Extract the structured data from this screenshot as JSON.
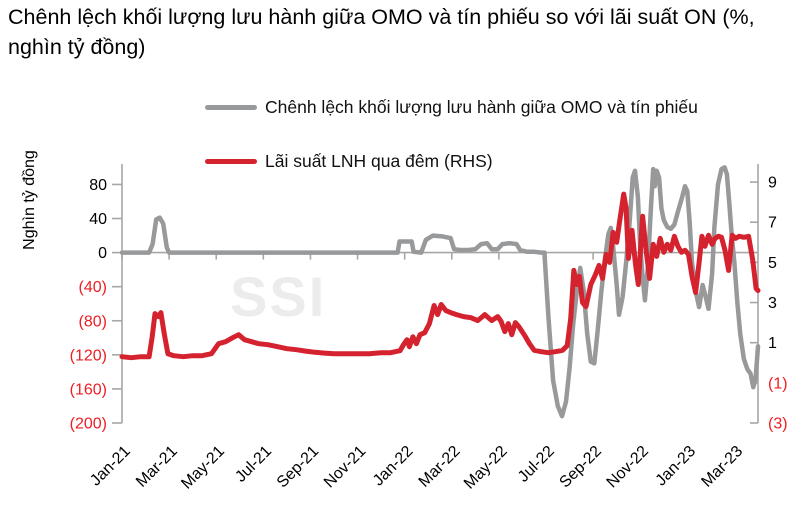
{
  "title": "Chênh lệch khối lượng lưu hành giữa OMO và tín phiếu so với lãi suất ON (%, nghìn tỷ đồng)",
  "watermark": "SSI",
  "legend": {
    "items": [
      {
        "label": "Chênh lệch khối lượng lưu hành giữa OMO và tín phiếu",
        "color": "#97999b"
      },
      {
        "label": "Lãi suất LNH qua đêm (RHS)",
        "color": "#d4232e"
      }
    ]
  },
  "chart_data": {
    "type": "line",
    "title": "Chênh lệch khối lượng lưu hành giữa OMO và tín phiếu so với lãi suất ON (%, nghìn tỷ đồng)",
    "x_unit": "months since Jan-2021 (0 = Jan-21)",
    "x_tick_months": [
      0,
      2,
      4,
      6,
      8,
      10,
      12,
      14,
      16,
      18,
      20,
      22,
      24,
      26
    ],
    "x_tick_labels": [
      "Jan-21",
      "Mar-21",
      "May-21",
      "Jul-21",
      "Sep-21",
      "Nov-21",
      "Jan-22",
      "Mar-22",
      "May-22",
      "Jul-22",
      "Sep-22",
      "Nov-22",
      "Jan-23",
      "Mar-23"
    ],
    "x_range": [
      0,
      27
    ],
    "left_axis": {
      "label": "Nghìn tỷ đồng",
      "ylim": [
        -200,
        104
      ],
      "tick_values": [
        80,
        40,
        0,
        -40,
        -80,
        -120,
        -160,
        -200
      ],
      "tick_labels": [
        "80",
        "40",
        "0",
        "(40)",
        "(80)",
        "(120)",
        "(160)",
        "(200)"
      ]
    },
    "right_axis": {
      "label": "%",
      "ylim": [
        -3,
        9.9
      ],
      "tick_values": [
        9,
        7,
        5,
        3,
        1,
        -1,
        -3
      ],
      "tick_labels": [
        "9",
        "7",
        "5",
        "3",
        "1",
        "(1)",
        "(3)"
      ]
    },
    "colors": {
      "axis_line": "#a6a6a6",
      "negative_tick": "#ee1d24",
      "positive_tick": "#000000"
    },
    "legend_position": "top",
    "grid": false,
    "series": [
      {
        "name": "Chênh lệch khối lượng lưu hành giữa OMO và tín phiếu",
        "axis": "left",
        "color": "#97999b",
        "width": 4.5,
        "points": [
          [
            0,
            0
          ],
          [
            0.6,
            0
          ],
          [
            1.15,
            0
          ],
          [
            1.3,
            10
          ],
          [
            1.45,
            39
          ],
          [
            1.6,
            41
          ],
          [
            1.75,
            34
          ],
          [
            1.9,
            6
          ],
          [
            2.0,
            0
          ],
          [
            2.5,
            0
          ],
          [
            3,
            0
          ],
          [
            3.5,
            0
          ],
          [
            4,
            0
          ],
          [
            4.5,
            0
          ],
          [
            5,
            0
          ],
          [
            5.5,
            0
          ],
          [
            6,
            0
          ],
          [
            6.5,
            0
          ],
          [
            7,
            0
          ],
          [
            7.5,
            0
          ],
          [
            8,
            0
          ],
          [
            8.5,
            0
          ],
          [
            9,
            0
          ],
          [
            9.5,
            0
          ],
          [
            10,
            0
          ],
          [
            10.5,
            0
          ],
          [
            11,
            0
          ],
          [
            11.5,
            0
          ],
          [
            11.7,
            0
          ],
          [
            11.78,
            13
          ],
          [
            12.3,
            13
          ],
          [
            12.38,
            1
          ],
          [
            12.7,
            0
          ],
          [
            12.9,
            15
          ],
          [
            13.2,
            20
          ],
          [
            13.6,
            19
          ],
          [
            13.95,
            17
          ],
          [
            14.1,
            4
          ],
          [
            14.35,
            3
          ],
          [
            14.7,
            3
          ],
          [
            15.0,
            4
          ],
          [
            15.25,
            10
          ],
          [
            15.5,
            11
          ],
          [
            15.7,
            4
          ],
          [
            15.95,
            4
          ],
          [
            16.15,
            10
          ],
          [
            16.45,
            11
          ],
          [
            16.75,
            10
          ],
          [
            16.9,
            3
          ],
          [
            17.2,
            1
          ],
          [
            17.5,
            1
          ],
          [
            17.8,
            0
          ],
          [
            17.93,
            0
          ],
          [
            18.0,
            -30
          ],
          [
            18.1,
            -75
          ],
          [
            18.3,
            -150
          ],
          [
            18.5,
            -180
          ],
          [
            18.68,
            -192
          ],
          [
            18.85,
            -175
          ],
          [
            19.0,
            -135
          ],
          [
            19.15,
            -85
          ],
          [
            19.3,
            -48
          ],
          [
            19.45,
            -18
          ],
          [
            19.6,
            -45
          ],
          [
            19.75,
            -95
          ],
          [
            19.9,
            -128
          ],
          [
            20.05,
            -130
          ],
          [
            20.2,
            -90
          ],
          [
            20.35,
            -45
          ],
          [
            20.5,
            -8
          ],
          [
            20.65,
            22
          ],
          [
            20.75,
            29
          ],
          [
            20.85,
            8
          ],
          [
            21.0,
            -38
          ],
          [
            21.1,
            -73
          ],
          [
            21.25,
            -52
          ],
          [
            21.4,
            -12
          ],
          [
            21.55,
            35
          ],
          [
            21.68,
            88
          ],
          [
            21.78,
            96
          ],
          [
            21.9,
            65
          ],
          [
            22.0,
            8
          ],
          [
            22.1,
            -28
          ],
          [
            22.2,
            -56
          ],
          [
            22.32,
            -18
          ],
          [
            22.45,
            50
          ],
          [
            22.55,
            98
          ],
          [
            22.62,
            78
          ],
          [
            22.7,
            96
          ],
          [
            22.8,
            88
          ],
          [
            22.9,
            52
          ],
          [
            23.0,
            38
          ],
          [
            23.15,
            30
          ],
          [
            23.3,
            28
          ],
          [
            23.45,
            33
          ],
          [
            23.6,
            48
          ],
          [
            23.75,
            62
          ],
          [
            23.9,
            78
          ],
          [
            24.0,
            72
          ],
          [
            24.1,
            35
          ],
          [
            24.2,
            -12
          ],
          [
            24.35,
            -45
          ],
          [
            24.5,
            -64
          ],
          [
            24.65,
            -38
          ],
          [
            24.78,
            -52
          ],
          [
            24.9,
            -66
          ],
          [
            25.05,
            -25
          ],
          [
            25.15,
            30
          ],
          [
            25.3,
            80
          ],
          [
            25.45,
            98
          ],
          [
            25.58,
            100
          ],
          [
            25.68,
            92
          ],
          [
            25.78,
            58
          ],
          [
            25.88,
            22
          ],
          [
            26.0,
            -12
          ],
          [
            26.12,
            -58
          ],
          [
            26.25,
            -96
          ],
          [
            26.4,
            -125
          ],
          [
            26.55,
            -137
          ],
          [
            26.68,
            -142
          ],
          [
            26.8,
            -158
          ],
          [
            26.9,
            -148
          ],
          [
            27.0,
            -110
          ]
        ]
      },
      {
        "name": "Lãi suất LNH qua đêm (RHS)",
        "axis": "right",
        "color": "#d4232e",
        "width": 5,
        "points": [
          [
            0,
            0.3
          ],
          [
            0.4,
            0.25
          ],
          [
            0.8,
            0.3
          ],
          [
            1.15,
            0.3
          ],
          [
            1.28,
            1.3
          ],
          [
            1.4,
            2.45
          ],
          [
            1.55,
            2.3
          ],
          [
            1.65,
            2.5
          ],
          [
            1.8,
            1.4
          ],
          [
            1.95,
            0.45
          ],
          [
            2.2,
            0.35
          ],
          [
            2.6,
            0.3
          ],
          [
            3.0,
            0.35
          ],
          [
            3.4,
            0.35
          ],
          [
            3.8,
            0.45
          ],
          [
            4.1,
            0.95
          ],
          [
            4.4,
            1.05
          ],
          [
            4.7,
            1.25
          ],
          [
            4.95,
            1.4
          ],
          [
            5.2,
            1.15
          ],
          [
            5.5,
            1.05
          ],
          [
            5.8,
            0.95
          ],
          [
            6.2,
            0.9
          ],
          [
            6.6,
            0.8
          ],
          [
            7.0,
            0.7
          ],
          [
            7.4,
            0.65
          ],
          [
            7.8,
            0.58
          ],
          [
            8.2,
            0.52
          ],
          [
            8.6,
            0.48
          ],
          [
            9.0,
            0.45
          ],
          [
            9.5,
            0.45
          ],
          [
            10.0,
            0.45
          ],
          [
            10.5,
            0.45
          ],
          [
            11.0,
            0.5
          ],
          [
            11.4,
            0.5
          ],
          [
            11.8,
            0.6
          ],
          [
            11.95,
            0.9
          ],
          [
            12.1,
            1.15
          ],
          [
            12.2,
            0.8
          ],
          [
            12.35,
            1.3
          ],
          [
            12.5,
            0.95
          ],
          [
            12.65,
            1.4
          ],
          [
            12.85,
            1.5
          ],
          [
            13.05,
            1.95
          ],
          [
            13.25,
            2.85
          ],
          [
            13.4,
            2.4
          ],
          [
            13.55,
            2.9
          ],
          [
            13.75,
            2.6
          ],
          [
            13.95,
            2.5
          ],
          [
            14.2,
            2.4
          ],
          [
            14.5,
            2.3
          ],
          [
            14.8,
            2.25
          ],
          [
            15.1,
            2.1
          ],
          [
            15.4,
            2.4
          ],
          [
            15.7,
            2.1
          ],
          [
            15.95,
            2.3
          ],
          [
            16.1,
            2.05
          ],
          [
            16.25,
            1.55
          ],
          [
            16.4,
            1.95
          ],
          [
            16.55,
            1.4
          ],
          [
            16.7,
            2.0
          ],
          [
            16.85,
            1.8
          ],
          [
            17.1,
            1.35
          ],
          [
            17.3,
            0.95
          ],
          [
            17.5,
            0.62
          ],
          [
            17.8,
            0.55
          ],
          [
            18.1,
            0.5
          ],
          [
            18.4,
            0.55
          ],
          [
            18.7,
            0.62
          ],
          [
            18.9,
            0.85
          ],
          [
            19.05,
            2.2
          ],
          [
            19.18,
            4.6
          ],
          [
            19.3,
            3.9
          ],
          [
            19.42,
            4.3
          ],
          [
            19.55,
            3.0
          ],
          [
            19.7,
            2.8
          ],
          [
            19.9,
            3.9
          ],
          [
            20.1,
            4.4
          ],
          [
            20.25,
            4.85
          ],
          [
            20.4,
            4.2
          ],
          [
            20.55,
            5.4
          ],
          [
            20.7,
            5.0
          ],
          [
            20.85,
            6.5
          ],
          [
            21.0,
            6.0
          ],
          [
            21.12,
            7.0
          ],
          [
            21.3,
            8.4
          ],
          [
            21.4,
            7.7
          ],
          [
            21.5,
            5.2
          ],
          [
            21.65,
            6.6
          ],
          [
            21.8,
            4.9
          ],
          [
            21.92,
            3.9
          ],
          [
            22.1,
            7.3
          ],
          [
            22.25,
            5.6
          ],
          [
            22.4,
            4.2
          ],
          [
            22.55,
            5.9
          ],
          [
            22.7,
            5.3
          ],
          [
            22.85,
            6.2
          ],
          [
            23.0,
            5.5
          ],
          [
            23.15,
            5.9
          ],
          [
            23.3,
            5.6
          ],
          [
            23.45,
            6.3
          ],
          [
            23.6,
            5.8
          ],
          [
            23.75,
            5.5
          ],
          [
            23.9,
            5.6
          ],
          [
            24.05,
            5.4
          ],
          [
            24.2,
            4.3
          ],
          [
            24.35,
            3.5
          ],
          [
            24.5,
            5.0
          ],
          [
            24.62,
            6.3
          ],
          [
            24.75,
            5.8
          ],
          [
            24.9,
            6.35
          ],
          [
            25.05,
            5.9
          ],
          [
            25.18,
            6.2
          ],
          [
            25.32,
            6.3
          ],
          [
            25.45,
            6.25
          ],
          [
            25.6,
            5.6
          ],
          [
            25.75,
            4.6
          ],
          [
            25.9,
            6.35
          ],
          [
            26.05,
            6.2
          ],
          [
            26.2,
            6.3
          ],
          [
            26.4,
            6.25
          ],
          [
            26.6,
            6.3
          ],
          [
            26.78,
            5.1
          ],
          [
            26.92,
            3.7
          ],
          [
            27.0,
            3.6
          ]
        ]
      }
    ]
  }
}
